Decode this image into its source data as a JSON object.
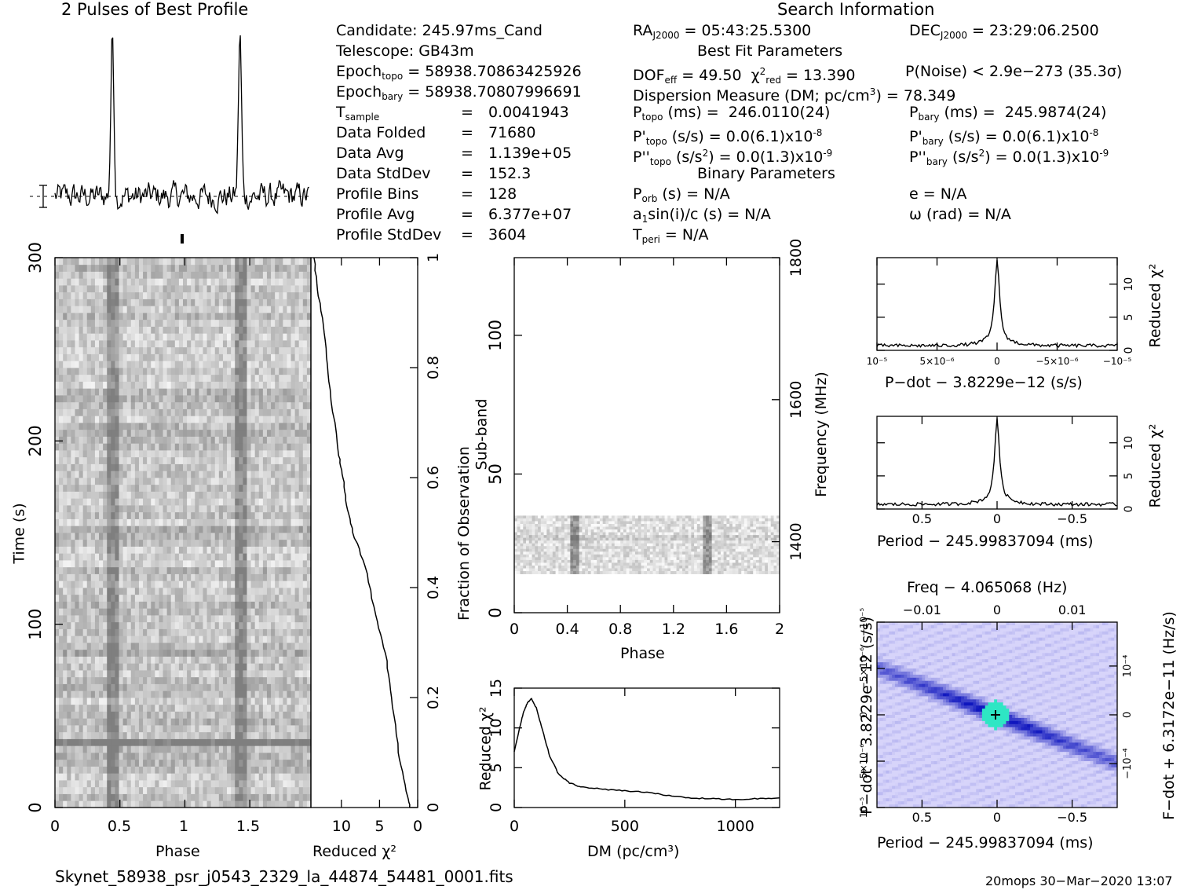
{
  "header": {
    "profile_title": "2 Pulses of Best Profile",
    "search_title": "Search Information",
    "best_fit_title": "Best Fit Parameters",
    "binary_title": "Binary Parameters"
  },
  "info_left": [
    {
      "label": "Candidate:  245.97ms_Cand"
    },
    {
      "label": "Telescope:  GB43m"
    },
    {
      "label": "Epoch",
      "sub": "topo",
      "value": " = 58938.70863425926"
    },
    {
      "label": "Epoch",
      "sub": "bary",
      "value": " = 58938.70807996691"
    },
    {
      "label": "T",
      "sub": "sample",
      "eq": "=",
      "value": "0.0041943"
    },
    {
      "label": "Data Folded",
      "eq": "=",
      "value": "71680"
    },
    {
      "label": "Data Avg",
      "eq": "=",
      "value": "1.139e+05"
    },
    {
      "label": "Data StdDev",
      "eq": "=",
      "value": "152.3"
    },
    {
      "label": "Profile Bins",
      "eq": "=",
      "value": "128"
    },
    {
      "label": "Profile Avg",
      "eq": "=",
      "value": "6.377e+07"
    },
    {
      "label": "Profile StdDev",
      "eq": "=",
      "value": "3604"
    }
  ],
  "info_mid": {
    "ra": "05:43:25.5300",
    "dof": "49.50",
    "chi2": "13.390",
    "dm": "78.349",
    "ptopo": "246.0110(24)",
    "pdtopo": "0.0(6.1)x10",
    "pdtopo_exp": "-8",
    "pddtopo": "0.0(1.3)x10",
    "pddtopo_exp": "-9",
    "porb": "N/A",
    "a1sini": "N/A",
    "tperi": "N/A"
  },
  "info_right": {
    "dec": "23:29:06.2500",
    "pnoise": "P(Noise) < 2.9e−273  (35.3σ)",
    "pbary": "245.9874(24)",
    "pdbary": "0.0(6.1)x10",
    "pdbary_exp": "-8",
    "pddbary": "0.0(1.3)x10",
    "pddbary_exp": "-9",
    "e": "N/A",
    "omega": "N/A"
  },
  "footer": {
    "filename": "Skynet_58938_psr_j0543_2329_la_44874_54481_0001.fits",
    "stamp": "20mops 30−Mar−2020 13:07"
  },
  "colors": {
    "ink": "#000000",
    "grid_dark": "#1a1a1a",
    "ppdot_base": "#8f86ee",
    "ppdot_hot": "#2ee6c4"
  },
  "chart_data": [
    {
      "name": "profile",
      "type": "line",
      "title": "2 Pulses of Best Profile",
      "xlim": [
        0,
        2
      ],
      "peaks_phase": [
        0.45,
        1.45
      ],
      "note": "two identical pulse profiles"
    },
    {
      "name": "time_phase",
      "type": "heatmap",
      "xlabel": "Phase",
      "ylabel": "Time (s)",
      "xlim": [
        0,
        2
      ],
      "ylim": [
        0,
        300
      ],
      "xticks": [
        "0",
        "0.5",
        "1",
        "1.5"
      ],
      "yticks": [
        "0",
        "100",
        "200",
        "300"
      ],
      "pulse_phase": [
        0.45,
        1.45
      ]
    },
    {
      "name": "time_chi2",
      "type": "line",
      "xlabel": "Reduced χ²",
      "ylabel": "Fraction of Observation",
      "xlim": [
        14,
        0
      ],
      "ylim": [
        0,
        1
      ],
      "xticks": [
        "10",
        "5",
        "0"
      ],
      "yticks": [
        "0",
        "0.2",
        "0.4",
        "0.6",
        "0.8",
        "1"
      ],
      "x": [
        1.0,
        1.5,
        2.5,
        3.4,
        4.2,
        5.5,
        6.9,
        8.5,
        9.3,
        9.8,
        10.3,
        11.5,
        12.1,
        13.0,
        13.6
      ],
      "y": [
        0.0,
        0.03,
        0.1,
        0.2,
        0.28,
        0.35,
        0.44,
        0.5,
        0.55,
        0.6,
        0.64,
        0.76,
        0.85,
        0.93,
        1.0
      ]
    },
    {
      "name": "subband_phase",
      "type": "heatmap",
      "xlabel": "Phase",
      "ylabel": "Sub-band",
      "y2label": "Frequency (MHz)",
      "xlim": [
        0,
        2
      ],
      "ylim": [
        0,
        128
      ],
      "xticks": [
        "0",
        "0.4",
        "0.8",
        "1.2",
        "1.6",
        "2"
      ],
      "yticks": [
        "0",
        "50",
        "100"
      ],
      "y2ticks": [
        "1400",
        "1600",
        "1800"
      ],
      "active_subbands": [
        14,
        35
      ],
      "pulse_phase": [
        0.45,
        1.45
      ]
    },
    {
      "name": "dm_chi2",
      "type": "line",
      "xlabel": "DM (pc/cm³)",
      "ylabel": "Reduced χ²",
      "xlim": [
        0,
        1200
      ],
      "ylim": [
        0,
        15
      ],
      "xticks": [
        "0",
        "500",
        "1000"
      ],
      "yticks": [
        "0",
        "5",
        "10",
        "15"
      ],
      "x": [
        0,
        20,
        40,
        60,
        78,
        100,
        130,
        160,
        200,
        250,
        300,
        400,
        500,
        600,
        700,
        800,
        900,
        1000,
        1100,
        1200
      ],
      "y": [
        7.0,
        9.5,
        11.8,
        13.2,
        13.7,
        12.5,
        9.5,
        6.5,
        4.2,
        3.1,
        2.6,
        2.3,
        2.1,
        1.9,
        1.5,
        1.2,
        1.1,
        1.0,
        1.1,
        1.2
      ]
    },
    {
      "name": "pdot_chi2",
      "type": "line",
      "xlabel": "P−dot − 3.8229e−12 (s/s)",
      "ylabel": "Reduced χ²",
      "xlim": [
        1e-05,
        -1e-05
      ],
      "ylim": [
        0,
        14
      ],
      "xticks": [
        "10⁻⁵",
        "5×10⁻⁶",
        "0",
        "−5×10⁻⁶",
        "−10⁻⁵"
      ],
      "yticks": [
        "0",
        "5",
        "10"
      ],
      "peak_x": 0,
      "peak_y": 13.4
    },
    {
      "name": "period_chi2",
      "type": "line",
      "xlabel": "Period − 245.99837094 (ms)",
      "ylabel": "Reduced χ²",
      "xlim": [
        0.8,
        -0.8
      ],
      "ylim": [
        0,
        14
      ],
      "xticks": [
        "0.5",
        "0",
        "−0.5"
      ],
      "yticks": [
        "0",
        "5",
        "10"
      ],
      "peak_x": 0,
      "peak_y": 13.4
    },
    {
      "name": "p_pdot",
      "type": "heatmap",
      "title": "Freq − 4.065068 (Hz)",
      "xlabel": "Period − 245.99837094 (ms)",
      "ylabel": "P−dot − 3.8229e−12 (s/s)",
      "y2label": "F−dot + 6.3172e−11 (Hz/s)",
      "xlim": [
        0.8,
        -0.8
      ],
      "ylim": [
        1e-05,
        -1e-05
      ],
      "xticks": [
        "0.5",
        "0",
        "−0.5"
      ],
      "x2ticks": [
        "−0.01",
        "0",
        "0.01"
      ],
      "yticks": [
        "10⁻⁵",
        "5×10⁻⁶",
        "0",
        "−5×10⁻⁶",
        "−10⁻⁵"
      ],
      "y2ticks": [
        "10⁻⁴",
        "0",
        "−10⁻⁴"
      ],
      "best_x": 0,
      "best_y": 0
    }
  ]
}
